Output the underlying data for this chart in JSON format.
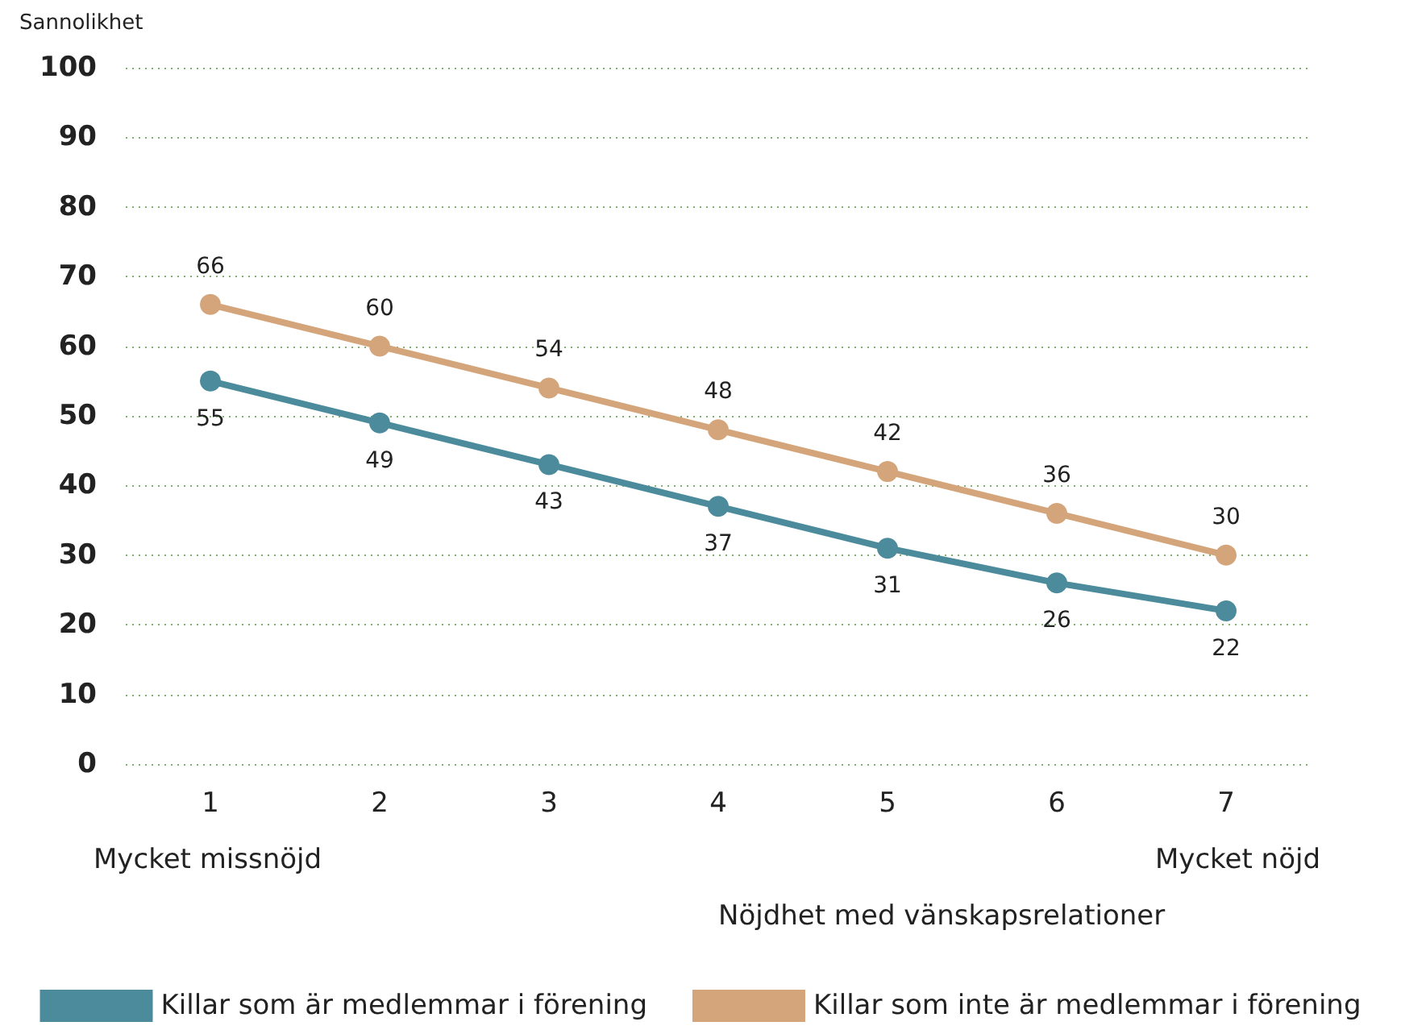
{
  "chart_data": {
    "type": "line",
    "ylabel": "Sannolikhet",
    "xlabel": "Nöjdhet med vänskapsrelationer",
    "categories": [
      "1",
      "2",
      "3",
      "4",
      "5",
      "6",
      "7"
    ],
    "series": [
      {
        "name": "Killar som är medlemmar i förening",
        "color": "#4b8b9b",
        "values": [
          55,
          49,
          43,
          37,
          31,
          26,
          22
        ]
      },
      {
        "name": "Killar som inte är medlemmar i förening",
        "color": "#d4a57a",
        "values": [
          66,
          60,
          54,
          48,
          42,
          36,
          30
        ]
      }
    ],
    "ylim": [
      0,
      100
    ],
    "yticks": [
      0,
      10,
      20,
      30,
      40,
      50,
      60,
      70,
      80,
      90,
      100
    ],
    "grid": "y",
    "legend": "bottom",
    "marker": "circle",
    "line_style": "solid",
    "data_labels": true,
    "annotations": [
      "Mycket missnöjd",
      "Mycket nöjd"
    ]
  }
}
